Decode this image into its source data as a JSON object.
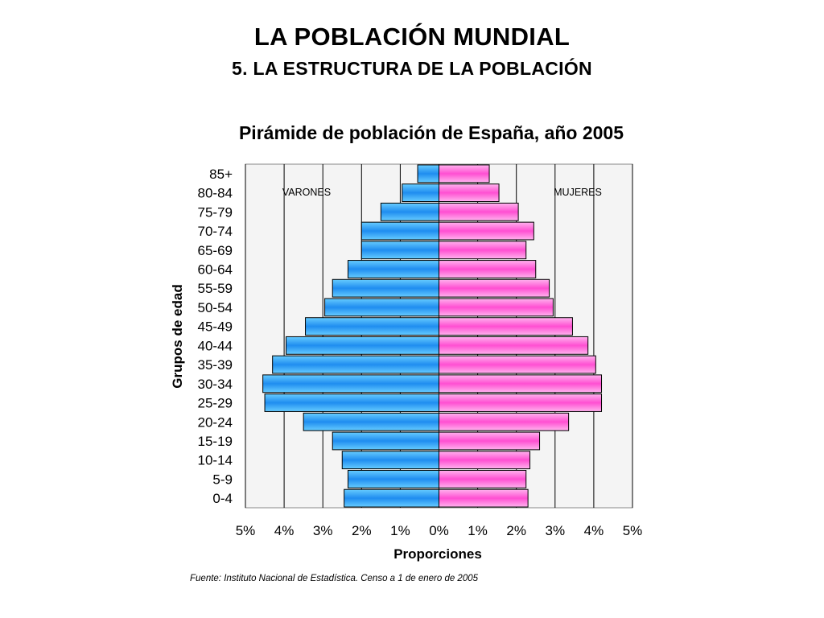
{
  "slide": {
    "title": "LA POBLACIÓN MUNDIAL",
    "subtitle": "5. LA ESTRUCTURA DE LA POBLACIÓN"
  },
  "source_note": "Fuente: Instituto Nacional de Estadística. Censo a 1 de enero de 2005",
  "colors": {
    "male_light": "#66ccff",
    "male_dark": "#1f8df0",
    "female_light": "#ffb3ee",
    "female_dark": "#ff4fd2",
    "plot_bg": "#f4f4f4",
    "grid": "#000000"
  },
  "chart_data": {
    "type": "bar",
    "orientation": "horizontal",
    "title": "Pirámide de población de España, año 2005",
    "xlabel": "Proporciones",
    "ylabel": "Grupos de edad",
    "xlim": [
      -5,
      5
    ],
    "x_tick_labels": [
      "5%",
      "4%",
      "3%",
      "2%",
      "1%",
      "0%",
      "1%",
      "2%",
      "3%",
      "4%",
      "5%"
    ],
    "categories": [
      "0-4",
      "5-9",
      "10-14",
      "15-19",
      "20-24",
      "25-29",
      "30-34",
      "35-39",
      "40-44",
      "45-49",
      "50-54",
      "55-59",
      "60-64",
      "65-69",
      "70-74",
      "75-79",
      "80-84",
      "85+"
    ],
    "series": [
      {
        "name": "VARONES",
        "values": [
          2.45,
          2.35,
          2.5,
          2.75,
          3.5,
          4.5,
          4.55,
          4.3,
          3.95,
          3.45,
          2.95,
          2.75,
          2.35,
          2.0,
          2.0,
          1.5,
          0.95,
          0.55
        ]
      },
      {
        "name": "MUJERES",
        "values": [
          2.3,
          2.25,
          2.35,
          2.6,
          3.35,
          4.2,
          4.2,
          4.05,
          3.85,
          3.45,
          2.95,
          2.85,
          2.5,
          2.25,
          2.45,
          2.05,
          1.55,
          1.3
        ]
      }
    ],
    "grid": true,
    "legend": "labels inside plot: VARONES top-left, MUJERES top-right"
  }
}
